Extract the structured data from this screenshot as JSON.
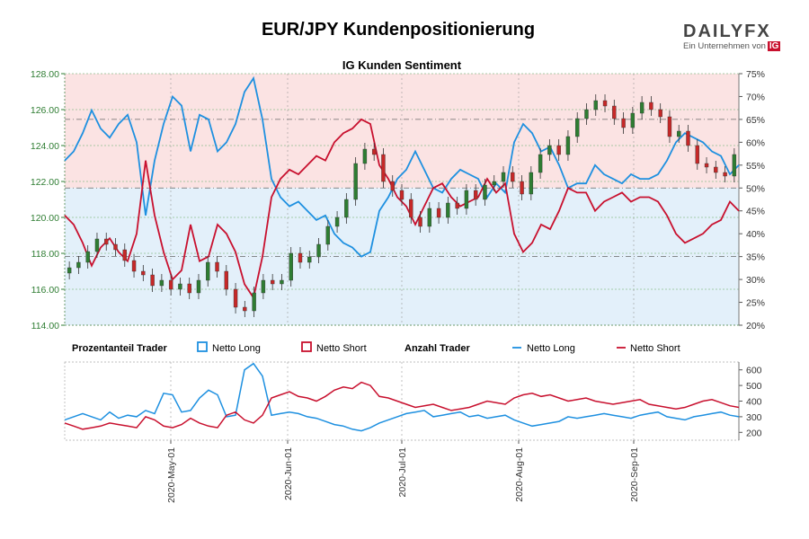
{
  "title": "EUR/JPY Kundenpositionierung",
  "logo": {
    "word": "DAILYFX",
    "subtitle": "Ein Unternehmen von",
    "badge": "IG"
  },
  "colors": {
    "candle_up": "#2e7d32",
    "candle_down": "#c62828",
    "long": "#1e90e0",
    "short": "#c8102e",
    "bg_short_zone": "#fbe3e3",
    "bg_long_zone": "#e3f0fa",
    "left_axis": "#2e7d32"
  },
  "legend": {
    "group1_title": "Prozentanteil Trader",
    "group1_long": "Netto Long",
    "group1_short": "Netto Short",
    "group2_title": "Anzahl Trader",
    "group2_long": "Netto Long",
    "group2_short": "Netto Short"
  },
  "chart_data": [
    {
      "type": "candlestick+line",
      "title": "IG Kunden Sentiment",
      "x_ticks": [
        "2020-May-01",
        "2020-Jun-01",
        "2020-Jul-01",
        "2020-Aug-01",
        "2020-Sep-01"
      ],
      "price": {
        "ylim": [
          114,
          128
        ],
        "ticks": [
          "114.00",
          "116.00",
          "118.00",
          "120.00",
          "122.00",
          "124.00",
          "126.00",
          "128.00"
        ],
        "close_series": [
          117.2,
          117.5,
          118.1,
          118.8,
          118.5,
          118.2,
          117.6,
          117.0,
          116.8,
          116.2,
          116.5,
          116.0,
          116.3,
          115.8,
          116.5,
          117.5,
          117.0,
          116.0,
          115.0,
          114.8,
          115.8,
          116.5,
          116.3,
          116.5,
          118.0,
          117.5,
          117.8,
          118.5,
          119.5,
          120.0,
          121.0,
          123.0,
          123.8,
          123.5,
          122.0,
          121.5,
          121.0,
          120.0,
          119.5,
          120.5,
          120.0,
          120.8,
          120.5,
          121.5,
          121.0,
          121.8,
          122.0,
          122.5,
          122.0,
          121.3,
          122.5,
          123.5,
          124.0,
          123.5,
          124.5,
          125.5,
          126.0,
          126.5,
          126.2,
          125.5,
          125.0,
          125.8,
          126.4,
          126.0,
          125.6,
          124.5,
          124.8,
          124.0,
          123.0,
          122.8,
          122.5,
          122.3,
          123.5
        ],
        "right_axis_pct_ticks": [
          "20%",
          "25%",
          "30%",
          "35%",
          "40%",
          "45%",
          "50%",
          "55%",
          "60%",
          "65%",
          "70%",
          "75%"
        ],
        "pct_range": [
          20,
          75
        ]
      },
      "sentiment_pct": {
        "net_long": [
          56,
          58,
          62,
          67,
          63,
          61,
          64,
          66,
          60,
          44,
          56,
          64,
          70,
          68,
          58,
          66,
          65,
          58,
          60,
          64,
          71,
          74,
          65,
          52,
          48,
          46,
          47,
          45,
          43,
          44,
          40,
          38,
          37,
          35,
          36,
          45,
          48,
          52,
          54,
          58,
          54,
          50,
          49,
          52,
          54,
          53,
          52,
          48,
          51,
          49,
          60,
          64,
          62,
          58,
          59,
          55,
          50,
          51,
          51,
          55,
          53,
          52,
          51,
          53,
          52,
          52,
          53,
          56,
          60,
          62,
          61,
          60,
          58,
          57,
          53,
          55
        ],
        "net_short": [
          44,
          42,
          38,
          33,
          37,
          39,
          36,
          34,
          40,
          56,
          44,
          36,
          30,
          32,
          42,
          34,
          35,
          42,
          40,
          36,
          29,
          26,
          35,
          48,
          52,
          54,
          53,
          55,
          57,
          56,
          60,
          62,
          63,
          65,
          64,
          55,
          52,
          48,
          46,
          42,
          46,
          50,
          51,
          48,
          46,
          47,
          48,
          52,
          49,
          51,
          40,
          36,
          38,
          42,
          41,
          45,
          50,
          49,
          49,
          45,
          47,
          48,
          49,
          47,
          48,
          48,
          47,
          44,
          40,
          38,
          39,
          40,
          42,
          43,
          47,
          45
        ]
      }
    },
    {
      "type": "line",
      "title": "",
      "ylim": [
        150,
        650
      ],
      "y_ticks": [
        "200",
        "300",
        "400",
        "500",
        "600"
      ],
      "net_long_count": [
        280,
        300,
        320,
        300,
        280,
        330,
        290,
        310,
        300,
        340,
        320,
        450,
        440,
        330,
        340,
        420,
        470,
        440,
        300,
        310,
        600,
        640,
        560,
        310,
        320,
        330,
        320,
        300,
        290,
        270,
        250,
        240,
        220,
        210,
        230,
        260,
        280,
        300,
        320,
        330,
        340,
        300,
        310,
        320,
        330,
        300,
        310,
        290,
        300,
        310,
        280,
        260,
        240,
        250,
        260,
        270,
        300,
        290,
        300,
        310,
        320,
        310,
        300,
        290,
        310,
        320,
        330,
        300,
        290,
        280,
        300,
        310,
        320,
        330,
        310,
        300
      ],
      "net_short_count": [
        260,
        240,
        220,
        230,
        240,
        260,
        250,
        240,
        230,
        300,
        280,
        240,
        230,
        250,
        290,
        260,
        240,
        230,
        310,
        330,
        280,
        260,
        310,
        420,
        440,
        460,
        430,
        420,
        400,
        430,
        470,
        490,
        480,
        520,
        500,
        430,
        420,
        400,
        380,
        360,
        370,
        380,
        360,
        340,
        350,
        360,
        380,
        400,
        390,
        380,
        420,
        440,
        450,
        430,
        440,
        420,
        400,
        410,
        420,
        400,
        390,
        380,
        390,
        400,
        410,
        380,
        370,
        360,
        350,
        360,
        380,
        400,
        410,
        390,
        370,
        360
      ]
    }
  ]
}
